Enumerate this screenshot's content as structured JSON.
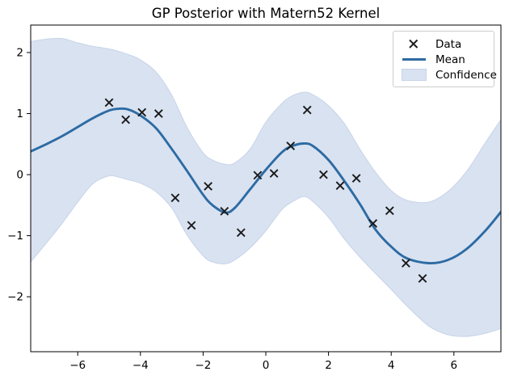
{
  "title": "GP Posterior with Matern52 Kernel",
  "legend": {
    "items": [
      {
        "label": "Data"
      },
      {
        "label": "Mean"
      },
      {
        "label": "Confidence"
      }
    ]
  },
  "colors": {
    "mean_line": "#2d6ba3",
    "confidence_fill": "#d9e2f1",
    "confidence_edge": "#c7d4e8",
    "marker": "#1a1a1a",
    "axis": "#000000",
    "tick_text": "#000000",
    "legend_border": "#cccccc"
  },
  "chart_data": {
    "type": "line",
    "title": "GP Posterior with Matern52 Kernel",
    "xlabel": "",
    "ylabel": "",
    "xlim": [
      -7.5,
      7.5
    ],
    "ylim": [
      -2.9,
      2.45
    ],
    "xtick_values": [
      -6,
      -4,
      -2,
      0,
      2,
      4,
      6
    ],
    "xtick_labels": [
      "−6",
      "−4",
      "−2",
      "0",
      "2",
      "4",
      "6"
    ],
    "ytick_values": [
      -2,
      -1,
      0,
      1,
      2
    ],
    "ytick_labels": [
      "−2",
      "−1",
      "0",
      "1",
      "2"
    ],
    "grid": false,
    "legend_position": "upper right",
    "series": [
      {
        "name": "Data",
        "type": "scatter",
        "marker": "x",
        "x": [
          -5.0,
          -4.47,
          -3.95,
          -3.42,
          -2.89,
          -2.37,
          -1.84,
          -1.32,
          -0.79,
          -0.26,
          0.26,
          0.79,
          1.32,
          1.84,
          2.37,
          2.89,
          3.42,
          3.95,
          4.47,
          5.0
        ],
        "y": [
          1.18,
          0.9,
          1.02,
          1.0,
          -0.38,
          -0.83,
          -0.19,
          -0.6,
          -0.95,
          -0.01,
          0.02,
          0.47,
          1.06,
          0.0,
          -0.18,
          -0.06,
          -0.8,
          -0.59,
          -1.45,
          -1.7
        ]
      },
      {
        "name": "Mean",
        "type": "line",
        "x": [
          -7.5,
          -7.0,
          -6.5,
          -6.0,
          -5.5,
          -5.0,
          -4.7,
          -4.4,
          -4.0,
          -3.5,
          -3.0,
          -2.5,
          -2.0,
          -1.7,
          -1.3,
          -1.0,
          -0.5,
          0.0,
          0.5,
          0.8,
          1.2,
          1.5,
          2.0,
          2.5,
          3.0,
          3.5,
          4.0,
          4.5,
          5.2,
          5.8,
          6.4,
          7.0,
          7.5
        ],
        "y": [
          0.38,
          0.5,
          0.63,
          0.78,
          0.93,
          1.05,
          1.08,
          1.07,
          0.97,
          0.76,
          0.42,
          0.05,
          -0.33,
          -0.5,
          -0.62,
          -0.55,
          -0.24,
          0.08,
          0.36,
          0.46,
          0.51,
          0.47,
          0.24,
          -0.1,
          -0.48,
          -0.9,
          -1.18,
          -1.37,
          -1.45,
          -1.4,
          -1.22,
          -0.92,
          -0.61
        ]
      },
      {
        "name": "Confidence",
        "type": "band",
        "x": [
          -7.5,
          -7.0,
          -6.5,
          -6.0,
          -5.5,
          -5.0,
          -4.7,
          -4.4,
          -4.0,
          -3.5,
          -3.0,
          -2.5,
          -2.0,
          -1.7,
          -1.3,
          -1.0,
          -0.5,
          0.0,
          0.5,
          0.8,
          1.2,
          1.5,
          2.0,
          2.5,
          3.0,
          3.5,
          4.0,
          4.5,
          5.2,
          5.8,
          6.4,
          7.0,
          7.5
        ],
        "upper": [
          2.18,
          2.22,
          2.23,
          2.16,
          2.1,
          2.06,
          2.02,
          1.97,
          1.88,
          1.68,
          1.3,
          0.76,
          0.36,
          0.24,
          0.17,
          0.19,
          0.42,
          0.86,
          1.16,
          1.28,
          1.35,
          1.31,
          1.13,
          0.84,
          0.42,
          0.04,
          -0.26,
          -0.42,
          -0.45,
          -0.28,
          0.05,
          0.52,
          0.9
        ],
        "lower": [
          -1.43,
          -1.12,
          -0.8,
          -0.45,
          -0.14,
          -0.02,
          -0.04,
          -0.08,
          -0.14,
          -0.28,
          -0.55,
          -1.0,
          -1.33,
          -1.43,
          -1.46,
          -1.4,
          -1.2,
          -0.92,
          -0.58,
          -0.46,
          -0.36,
          -0.44,
          -0.7,
          -1.05,
          -1.35,
          -1.62,
          -1.88,
          -2.15,
          -2.48,
          -2.62,
          -2.65,
          -2.6,
          -2.52
        ]
      }
    ]
  }
}
